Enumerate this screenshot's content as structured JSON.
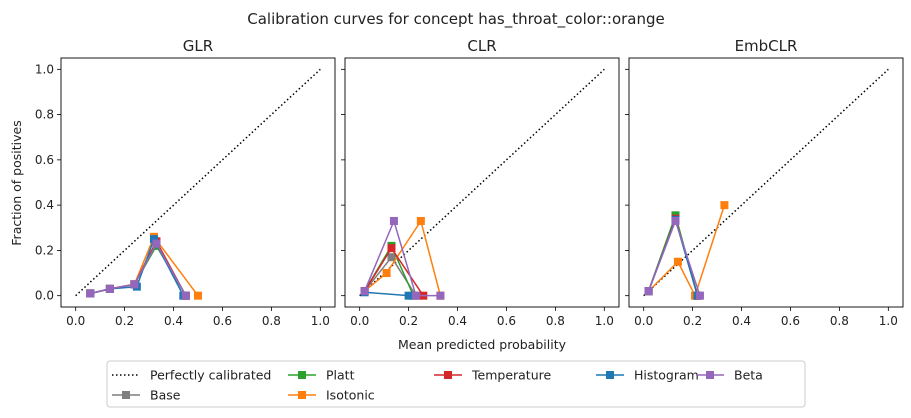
{
  "suptitle": "Calibration curves for concept has_throat_color::orange",
  "xlabel": "Mean predicted probability",
  "ylabel": "Fraction of positives",
  "legend_placement": "bottom-center",
  "legend": [
    {
      "label": "Perfectly calibrated",
      "color": "#000000",
      "style": "dotted"
    },
    {
      "label": "Base",
      "color": "#7f7f7f",
      "style": "line-square"
    },
    {
      "label": "Platt",
      "color": "#2ca02c",
      "style": "line-square"
    },
    {
      "label": "Isotonic",
      "color": "#ff7f0e",
      "style": "line-square"
    },
    {
      "label": "Temperature",
      "color": "#d62728",
      "style": "line-square"
    },
    {
      "label": "Histogram",
      "color": "#1f77b4",
      "style": "line-square"
    },
    {
      "label": "Beta",
      "color": "#9467bd",
      "style": "line-square"
    }
  ],
  "chart_data": [
    {
      "type": "line",
      "title": "GLR",
      "xlim": [
        -0.06,
        1.06
      ],
      "ylim": [
        -0.05,
        1.05
      ],
      "xticks": [
        "0.0",
        "0.2",
        "0.4",
        "0.6",
        "0.8",
        "1.0"
      ],
      "yticks": [
        "0.0",
        "0.2",
        "0.4",
        "0.6",
        "0.8",
        "1.0"
      ],
      "show_yticklabels": true,
      "series": [
        {
          "name": "Perfectly calibrated",
          "color": "#000000",
          "x": [
            0,
            1
          ],
          "y": [
            0,
            1
          ]
        },
        {
          "name": "Base",
          "color": "#7f7f7f",
          "x": [
            0.06,
            0.14,
            0.24,
            0.33,
            0.45
          ],
          "y": [
            0.01,
            0.03,
            0.05,
            0.24,
            0.0
          ]
        },
        {
          "name": "Platt",
          "color": "#2ca02c",
          "x": [
            0.06,
            0.14,
            0.24,
            0.33,
            0.45
          ],
          "y": [
            0.01,
            0.03,
            0.05,
            0.22,
            0.0
          ]
        },
        {
          "name": "Isotonic",
          "color": "#ff7f0e",
          "x": [
            0.06,
            0.14,
            0.24,
            0.32,
            0.5
          ],
          "y": [
            0.01,
            0.03,
            0.05,
            0.26,
            0.0
          ]
        },
        {
          "name": "Temperature",
          "color": "#d62728",
          "x": [
            0.06,
            0.14,
            0.24,
            0.33,
            0.45
          ],
          "y": [
            0.01,
            0.03,
            0.05,
            0.24,
            0.0
          ]
        },
        {
          "name": "Histogram",
          "color": "#1f77b4",
          "x": [
            0.06,
            0.14,
            0.25,
            0.32,
            0.44
          ],
          "y": [
            0.01,
            0.03,
            0.04,
            0.25,
            0.0
          ]
        },
        {
          "name": "Beta",
          "color": "#9467bd",
          "x": [
            0.06,
            0.14,
            0.24,
            0.33,
            0.45
          ],
          "y": [
            0.01,
            0.03,
            0.05,
            0.23,
            0.0
          ]
        }
      ]
    },
    {
      "type": "line",
      "title": "CLR",
      "xlim": [
        -0.06,
        1.06
      ],
      "ylim": [
        -0.05,
        1.05
      ],
      "xticks": [
        "0.0",
        "0.2",
        "0.4",
        "0.6",
        "0.8",
        "1.0"
      ],
      "yticks": [
        "0.0",
        "0.2",
        "0.4",
        "0.6",
        "0.8",
        "1.0"
      ],
      "show_yticklabels": false,
      "series": [
        {
          "name": "Perfectly calibrated",
          "color": "#000000",
          "x": [
            0,
            1
          ],
          "y": [
            0,
            1
          ]
        },
        {
          "name": "Base",
          "color": "#7f7f7f",
          "x": [
            0.02,
            0.13,
            0.23
          ],
          "y": [
            0.02,
            0.17,
            0.0
          ]
        },
        {
          "name": "Platt",
          "color": "#2ca02c",
          "x": [
            0.02,
            0.13,
            0.22
          ],
          "y": [
            0.02,
            0.22,
            0.0
          ]
        },
        {
          "name": "Isotonic",
          "color": "#ff7f0e",
          "x": [
            0.02,
            0.11,
            0.25,
            0.33
          ],
          "y": [
            0.02,
            0.1,
            0.33,
            0.0
          ]
        },
        {
          "name": "Temperature",
          "color": "#d62728",
          "x": [
            0.02,
            0.13,
            0.26
          ],
          "y": [
            0.02,
            0.21,
            0.0
          ]
        },
        {
          "name": "Histogram",
          "color": "#1f77b4",
          "x": [
            0.02,
            0.2
          ],
          "y": [
            0.015,
            0.0
          ]
        },
        {
          "name": "Beta",
          "color": "#9467bd",
          "x": [
            0.02,
            0.14,
            0.23,
            0.33
          ],
          "y": [
            0.02,
            0.33,
            0.0,
            0.0
          ]
        }
      ]
    },
    {
      "type": "line",
      "title": "EmbCLR",
      "xlim": [
        -0.06,
        1.06
      ],
      "ylim": [
        -0.05,
        1.05
      ],
      "xticks": [
        "0.0",
        "0.2",
        "0.4",
        "0.6",
        "0.8",
        "1.0"
      ],
      "yticks": [
        "0.0",
        "0.2",
        "0.4",
        "0.6",
        "0.8",
        "1.0"
      ],
      "show_yticklabels": false,
      "series": [
        {
          "name": "Perfectly calibrated",
          "color": "#000000",
          "x": [
            0,
            1
          ],
          "y": [
            0,
            1
          ]
        },
        {
          "name": "Base",
          "color": "#7f7f7f",
          "x": [
            0.02,
            0.13,
            0.22
          ],
          "y": [
            0.02,
            0.35,
            0.0
          ]
        },
        {
          "name": "Platt",
          "color": "#2ca02c",
          "x": [
            0.02,
            0.13,
            0.22
          ],
          "y": [
            0.02,
            0.355,
            0.0
          ]
        },
        {
          "name": "Isotonic",
          "color": "#ff7f0e",
          "x": [
            0.02,
            0.14,
            0.21,
            0.33
          ],
          "y": [
            0.02,
            0.15,
            0.0,
            0.4
          ]
        },
        {
          "name": "Temperature",
          "color": "#d62728",
          "x": [
            0.02,
            0.13,
            0.22
          ],
          "y": [
            0.02,
            0.34,
            0.0
          ]
        },
        {
          "name": "Histogram",
          "color": "#1f77b4",
          "x": [
            0.02,
            0.13,
            0.22
          ],
          "y": [
            0.02,
            0.335,
            0.0
          ]
        },
        {
          "name": "Beta",
          "color": "#9467bd",
          "x": [
            0.02,
            0.13,
            0.23
          ],
          "y": [
            0.02,
            0.33,
            0.0
          ]
        }
      ]
    }
  ]
}
